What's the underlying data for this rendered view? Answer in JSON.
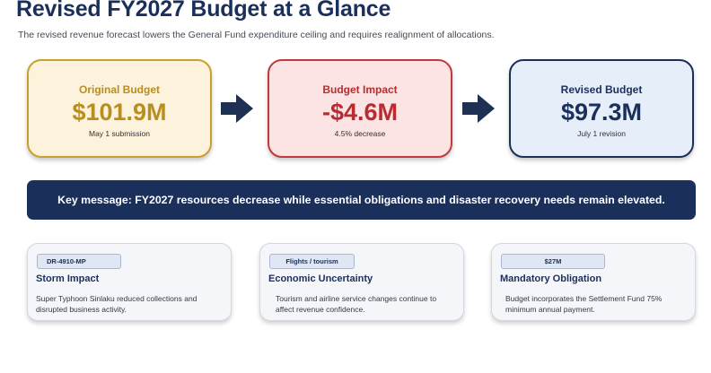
{
  "header": {
    "title": "Revised FY2027 Budget at a Glance",
    "subtitle": "The revised revenue forecast lowers the General Fund expenditure ceiling and requires realignment of allocations."
  },
  "flow": {
    "original": {
      "label": "Original Budget",
      "value": "$101.9M",
      "note": "May 1 submission"
    },
    "impact": {
      "label": "Budget Impact",
      "value": "-$4.6M",
      "note": "4.5% decrease"
    },
    "revised": {
      "label": "Revised Budget",
      "value": "$97.3M",
      "note": "July 1 revision"
    }
  },
  "banner": {
    "text": "Key message: FY2027 resources decrease while essential obligations and disaster recovery needs remain elevated."
  },
  "cards": [
    {
      "tag": "DR-4910-MP",
      "title": "Storm Impact",
      "body": "Super Typhoon Sinlaku reduced collections and disrupted business activity."
    },
    {
      "tag": "Flights / tourism",
      "title": "Economic Uncertainty",
      "body": "Tourism and airline service changes continue to affect revenue confidence."
    },
    {
      "tag": "$27M",
      "title": "Mandatory Obligation",
      "body": "Budget incorporates the Settlement Fund 75% minimum annual payment."
    }
  ],
  "colors": {
    "navy": "#1a2f5a",
    "gold": "#b98e1f",
    "red": "#b82c31",
    "arrow": "#1f3152"
  },
  "icons": {
    "flow_arrow": "right-arrow-icon"
  }
}
